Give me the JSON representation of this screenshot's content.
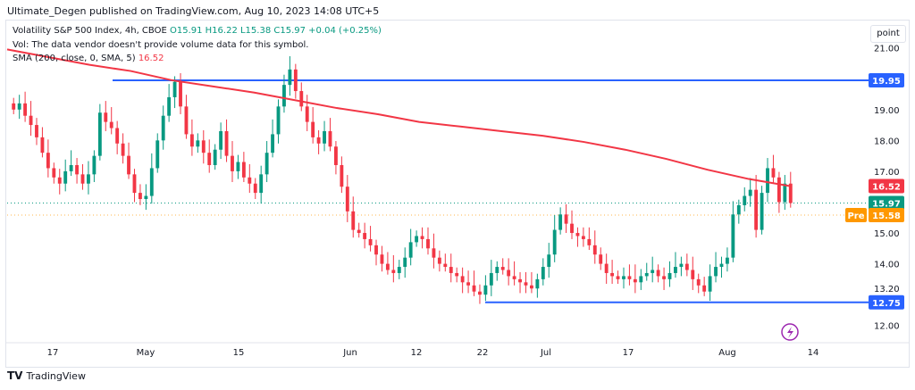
{
  "header": {
    "published": "Ultimate_Degen published on TradingView.com, Aug 10, 2023 14:08 UTC+5"
  },
  "legend": {
    "symbol": "Volatility S&P 500 Index, 4h, CBOE",
    "ohlc": "O15.91 H16.22 L15.38 C15.97 +0.04 (+0.25%)",
    "vol": "Vol: The data vendor doesn't provide volume data for this symbol.",
    "sma_label": "SMA (200, close, 0, SMA, 5)",
    "sma_value": "16.52"
  },
  "toolbar": {
    "scale_label": "point"
  },
  "branding": {
    "logo_text": "TradingView",
    "logo_icon": "tradingview-logo-icon"
  },
  "colors": {
    "up": "#089981",
    "down": "#f23645",
    "sma": "#f23645",
    "hline": "#2962ff",
    "pre": "#ff9800"
  },
  "chart_data": {
    "type": "candlestick",
    "title": "Volatility S&P 500 Index, 4h, CBOE",
    "ylim": [
      11.5,
      21.8
    ],
    "y_ticks": [
      "21.00",
      "19.00",
      "18.00",
      "17.00",
      "15.00",
      "14.00",
      "13.20",
      "12.00"
    ],
    "y_tick_values": [
      21.0,
      19.0,
      18.0,
      17.0,
      15.0,
      14.0,
      13.2,
      12.0
    ],
    "x_ticks": [
      "17",
      "May",
      "15",
      "Jun",
      "12",
      "22",
      "Jul",
      "17",
      "Aug",
      "14"
    ],
    "price_labels": [
      {
        "label": "19.95",
        "value": 19.95,
        "kind": "hline"
      },
      {
        "label": "16.52",
        "value": 16.52,
        "kind": "sma"
      },
      {
        "label": "15.97",
        "value": 15.97,
        "kind": "last"
      },
      {
        "label": "15.58",
        "value": 15.58,
        "kind": "pre",
        "prefix": "Pre"
      },
      {
        "label": "12.75",
        "value": 12.75,
        "kind": "hline"
      }
    ],
    "horizontal_lines": [
      19.95,
      12.75
    ],
    "sma": [
      20.95,
      20.7,
      20.45,
      20.25,
      19.95,
      19.75,
      19.55,
      19.3,
      19.05,
      18.85,
      18.6,
      18.45,
      18.3,
      18.15,
      17.95,
      17.7,
      17.4,
      17.05,
      16.75,
      16.52
    ],
    "closes": [
      19.0,
      19.2,
      18.8,
      18.5,
      18.1,
      17.6,
      17.1,
      16.8,
      16.6,
      17.0,
      17.2,
      16.9,
      16.6,
      16.9,
      17.5,
      18.9,
      18.6,
      18.4,
      17.9,
      17.5,
      16.9,
      16.3,
      16.1,
      16.2,
      17.1,
      18.0,
      18.8,
      19.4,
      19.9,
      19.1,
      18.2,
      17.8,
      18.0,
      17.6,
      17.2,
      17.7,
      18.3,
      17.5,
      17.0,
      17.3,
      16.8,
      16.6,
      16.3,
      16.9,
      17.6,
      18.2,
      19.1,
      19.8,
      20.3,
      19.6,
      19.1,
      18.6,
      18.1,
      17.9,
      18.3,
      17.8,
      17.2,
      16.5,
      15.7,
      15.1,
      15.0,
      14.8,
      14.6,
      14.3,
      14.0,
      13.8,
      13.7,
      13.9,
      14.2,
      14.7,
      14.9,
      14.8,
      14.5,
      14.2,
      14.0,
      13.9,
      13.7,
      13.6,
      13.4,
      13.3,
      13.1,
      13.0,
      13.3,
      13.7,
      13.9,
      13.8,
      13.6,
      13.5,
      13.4,
      13.3,
      13.2,
      13.5,
      13.9,
      14.3,
      15.1,
      15.6,
      15.3,
      15.0,
      14.9,
      14.8,
      14.6,
      14.3,
      14.0,
      13.7,
      13.6,
      13.5,
      13.6,
      13.5,
      13.4,
      13.6,
      13.7,
      13.8,
      13.6,
      13.5,
      13.7,
      13.9,
      14.0,
      13.8,
      13.5,
      13.3,
      13.1,
      13.6,
      13.9,
      14.0,
      14.2,
      15.6,
      15.9,
      16.2,
      16.4,
      15.1,
      16.3,
      17.1,
      16.8,
      16.0,
      16.6,
      15.97
    ],
    "annotations": []
  }
}
